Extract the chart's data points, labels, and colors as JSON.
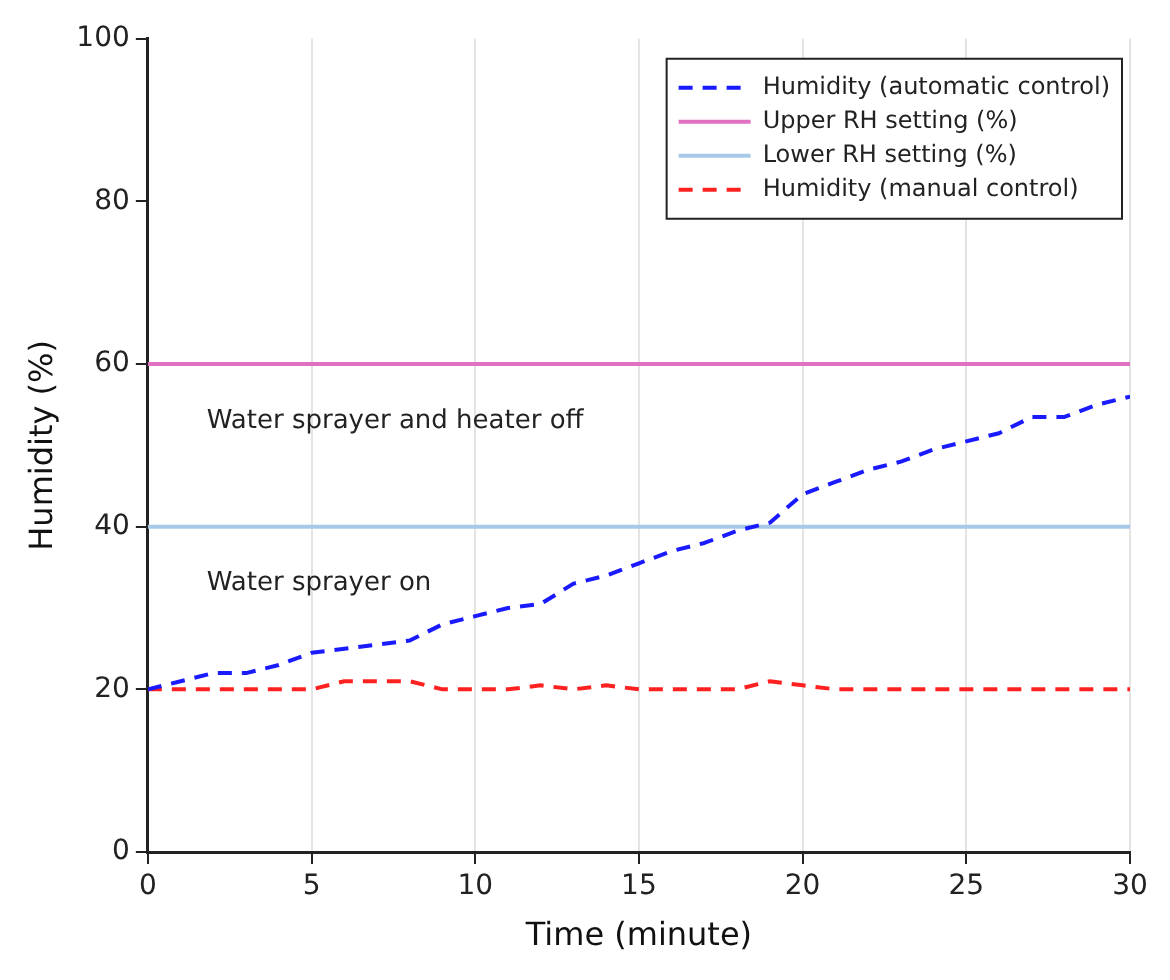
{
  "chart_data": {
    "type": "line",
    "xlabel": "Time (minute)",
    "ylabel": "Humidity (%)",
    "x": [
      0,
      1,
      2,
      3,
      4,
      5,
      6,
      7,
      8,
      9,
      10,
      11,
      12,
      13,
      14,
      15,
      16,
      17,
      18,
      19,
      20,
      21,
      22,
      23,
      24,
      25,
      26,
      27,
      28,
      29,
      30
    ],
    "series": [
      {
        "name": "Humidity (automatic control)",
        "color": "#1a1aff",
        "line_style": "dashed",
        "values": [
          20,
          21,
          22,
          22,
          23,
          24.5,
          25,
          25.5,
          26,
          28,
          29,
          30,
          30.5,
          33,
          34,
          35.5,
          37,
          38,
          39.5,
          40.5,
          44,
          45.5,
          47,
          48,
          49.5,
          50.5,
          51.5,
          53.5,
          53.5,
          55,
          56
        ]
      },
      {
        "name": "Upper RH setting (%)",
        "color": "#e070c0",
        "line_style": "solid",
        "values": [
          60,
          60,
          60,
          60,
          60,
          60,
          60,
          60,
          60,
          60,
          60,
          60,
          60,
          60,
          60,
          60,
          60,
          60,
          60,
          60,
          60,
          60,
          60,
          60,
          60,
          60,
          60,
          60,
          60,
          60,
          60
        ]
      },
      {
        "name": "Lower RH setting (%)",
        "color": "#a8c8e8",
        "line_style": "solid",
        "values": [
          40,
          40,
          40,
          40,
          40,
          40,
          40,
          40,
          40,
          40,
          40,
          40,
          40,
          40,
          40,
          40,
          40,
          40,
          40,
          40,
          40,
          40,
          40,
          40,
          40,
          40,
          40,
          40,
          40,
          40,
          40
        ]
      },
      {
        "name": "Humidity (manual control)",
        "color": "#ff2020",
        "line_style": "dashed",
        "values": [
          20,
          20,
          20,
          20,
          20,
          20,
          21,
          21,
          21,
          20,
          20,
          20,
          20.5,
          20,
          20.5,
          20,
          20,
          20,
          20,
          21,
          20.5,
          20,
          20,
          20,
          20,
          20,
          20,
          20,
          20,
          20,
          20
        ]
      }
    ],
    "annotations": [
      "Water sprayer and heater off",
      "Water sprayer on"
    ],
    "xlim": [
      0,
      30
    ],
    "xticks": [
      0,
      5,
      10,
      15,
      20,
      25,
      30
    ],
    "ylim": [
      0,
      100
    ],
    "yticks": [
      0,
      20,
      40,
      60,
      80,
      100
    ],
    "grid": "x",
    "legend": "top right",
    "marker": "none"
  }
}
